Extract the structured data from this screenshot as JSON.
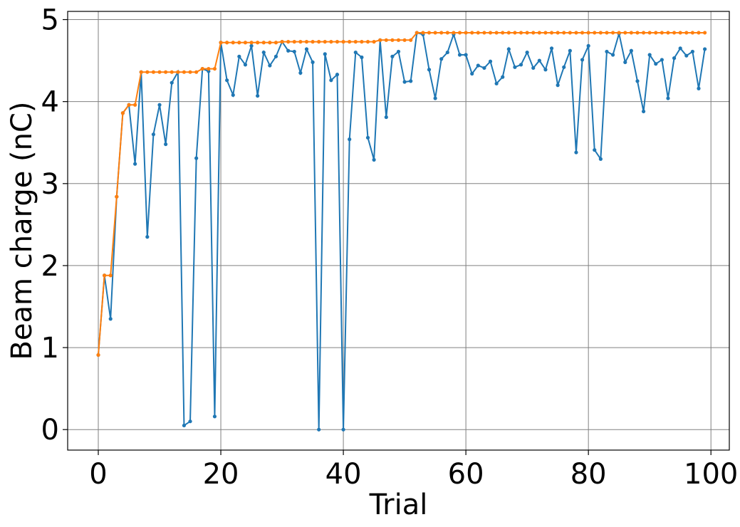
{
  "chart_data": {
    "type": "line",
    "xlabel": "Trial",
    "ylabel": "Beam charge (nC)",
    "xlim": [
      -5,
      103
    ],
    "ylim": [
      -0.25,
      5.1
    ],
    "xticks": [
      0,
      20,
      40,
      60,
      80,
      100
    ],
    "yticks": [
      0,
      1,
      2,
      3,
      4,
      5
    ],
    "grid": true,
    "x": [
      0,
      1,
      2,
      3,
      4,
      5,
      6,
      7,
      8,
      9,
      10,
      11,
      12,
      13,
      14,
      15,
      16,
      17,
      18,
      19,
      20,
      21,
      22,
      23,
      24,
      25,
      26,
      27,
      28,
      29,
      30,
      31,
      32,
      33,
      34,
      35,
      36,
      37,
      38,
      39,
      40,
      41,
      42,
      43,
      44,
      45,
      46,
      47,
      48,
      49,
      50,
      51,
      52,
      53,
      54,
      55,
      56,
      57,
      58,
      59,
      60,
      61,
      62,
      63,
      64,
      65,
      66,
      67,
      68,
      69,
      70,
      71,
      72,
      73,
      74,
      75,
      76,
      77,
      78,
      79,
      80,
      81,
      82,
      83,
      84,
      85,
      86,
      87,
      88,
      89,
      90,
      91,
      92,
      93,
      94,
      95,
      96,
      97,
      98,
      99
    ],
    "series": [
      {
        "color": "#1f77b4",
        "values": [
          0.91,
          1.88,
          1.35,
          2.84,
          3.86,
          3.96,
          3.24,
          4.36,
          2.35,
          3.6,
          3.96,
          3.48,
          4.23,
          4.36,
          0.05,
          0.1,
          3.31,
          4.4,
          4.37,
          0.16,
          4.72,
          4.26,
          4.08,
          4.55,
          4.45,
          4.68,
          4.07,
          4.6,
          4.44,
          4.55,
          4.73,
          4.62,
          4.61,
          4.35,
          4.64,
          4.48,
          0.0,
          4.58,
          4.26,
          4.33,
          0.0,
          3.54,
          4.6,
          4.54,
          3.56,
          3.29,
          4.75,
          3.81,
          4.55,
          4.61,
          4.24,
          4.25,
          4.84,
          4.82,
          4.39,
          4.04,
          4.52,
          4.6,
          4.82,
          4.57,
          4.57,
          4.34,
          4.44,
          4.41,
          4.49,
          4.22,
          4.3,
          4.64,
          4.42,
          4.45,
          4.6,
          4.41,
          4.5,
          4.39,
          4.65,
          4.2,
          4.42,
          4.62,
          3.38,
          4.51,
          4.68,
          3.41,
          3.3,
          4.61,
          4.57,
          4.83,
          4.48,
          4.62,
          4.25,
          3.88,
          4.57,
          4.46,
          4.51,
          4.04,
          4.53,
          4.65,
          4.56,
          4.61,
          4.16,
          4.64
        ]
      },
      {
        "color": "#ff7f0e",
        "values": [
          0.91,
          1.88,
          1.88,
          2.84,
          3.86,
          3.96,
          3.96,
          4.36,
          4.36,
          4.36,
          4.36,
          4.36,
          4.36,
          4.36,
          4.36,
          4.36,
          4.36,
          4.4,
          4.4,
          4.4,
          4.72,
          4.72,
          4.72,
          4.72,
          4.72,
          4.72,
          4.72,
          4.72,
          4.72,
          4.72,
          4.73,
          4.73,
          4.73,
          4.73,
          4.73,
          4.73,
          4.73,
          4.73,
          4.73,
          4.73,
          4.73,
          4.73,
          4.73,
          4.73,
          4.73,
          4.73,
          4.75,
          4.75,
          4.75,
          4.75,
          4.75,
          4.75,
          4.84,
          4.84,
          4.84,
          4.84,
          4.84,
          4.84,
          4.84,
          4.84,
          4.84,
          4.84,
          4.84,
          4.84,
          4.84,
          4.84,
          4.84,
          4.84,
          4.84,
          4.84,
          4.84,
          4.84,
          4.84,
          4.84,
          4.84,
          4.84,
          4.84,
          4.84,
          4.84,
          4.84,
          4.84,
          4.84,
          4.84,
          4.84,
          4.84,
          4.84,
          4.84,
          4.84,
          4.84,
          4.84,
          4.84,
          4.84,
          4.84,
          4.84,
          4.84,
          4.84,
          4.84,
          4.84,
          4.84,
          4.84
        ]
      }
    ]
  }
}
